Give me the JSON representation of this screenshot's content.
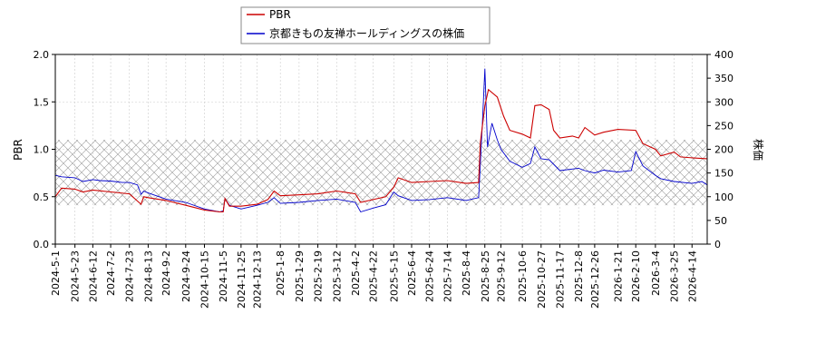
{
  "chart_data": {
    "type": "line",
    "legend": {
      "placement": "top-center",
      "entries": [
        "PBR",
        "京都きもの友禅ホールディングスの株価"
      ]
    },
    "left_axis": {
      "label": "PBR",
      "range": [
        0,
        2.0
      ],
      "ticks": [
        "0.0",
        "0.5",
        "1.0",
        "1.5",
        "2.0"
      ]
    },
    "right_axis": {
      "label": "株価",
      "range": [
        0,
        400
      ],
      "ticks": [
        "0",
        "50",
        "100",
        "150",
        "200",
        "250",
        "300",
        "350",
        "400"
      ]
    },
    "x_axis": {
      "range": [
        "2024-05-01",
        "2026-05-01"
      ],
      "ticks": [
        "2024-5-1",
        "2024-5-23",
        "2024-6-12",
        "2024-7-2",
        "2024-7-23",
        "2024-8-13",
        "2024-9-2",
        "2024-9-24",
        "2024-10-15",
        "2024-11-5",
        "2024-11-25",
        "2024-12-13",
        "2025-1-8",
        "2025-1-29",
        "2025-2-19",
        "2025-3-12",
        "2025-4-2",
        "2025-4-22",
        "2025-5-15",
        "2025-6-4",
        "2025-6-24",
        "2025-7-14",
        "2025-8-4",
        "2025-8-25",
        "2025-9-12",
        "2025-10-6",
        "2025-10-27",
        "2025-11-17",
        "2025-12-8",
        "2025-12-26",
        "2026-1-21",
        "2026-2-10",
        "2026-3-4",
        "2026-3-25",
        "2026-4-14"
      ]
    },
    "band": {
      "axis": "right",
      "range": [
        82,
        220
      ],
      "pattern": "crosshatch"
    },
    "grid": true,
    "colors": {
      "pbr": "#cc0000",
      "price": "#0000cc",
      "band": "#999999"
    },
    "series": [
      {
        "name": "PBR",
        "axis": "left",
        "points": [
          [
            "2024-05-01",
            0.5
          ],
          [
            "2024-05-08",
            0.59
          ],
          [
            "2024-05-23",
            0.58
          ],
          [
            "2024-06-01",
            0.55
          ],
          [
            "2024-06-12",
            0.57
          ],
          [
            "2024-07-02",
            0.55
          ],
          [
            "2024-07-23",
            0.53
          ],
          [
            "2024-08-05",
            0.42
          ],
          [
            "2024-08-08",
            0.5
          ],
          [
            "2024-08-13",
            0.49
          ],
          [
            "2024-09-02",
            0.46
          ],
          [
            "2024-09-24",
            0.41
          ],
          [
            "2024-10-15",
            0.36
          ],
          [
            "2024-11-01",
            0.34
          ],
          [
            "2024-11-05",
            0.34
          ],
          [
            "2024-11-07",
            0.48
          ],
          [
            "2024-11-12",
            0.4
          ],
          [
            "2024-11-25",
            0.4
          ],
          [
            "2024-12-13",
            0.42
          ],
          [
            "2024-12-25",
            0.47
          ],
          [
            "2025-01-01",
            0.56
          ],
          [
            "2025-01-08",
            0.51
          ],
          [
            "2025-01-29",
            0.52
          ],
          [
            "2025-02-19",
            0.53
          ],
          [
            "2025-03-12",
            0.56
          ],
          [
            "2025-04-02",
            0.53
          ],
          [
            "2025-04-08",
            0.44
          ],
          [
            "2025-04-22",
            0.47
          ],
          [
            "2025-05-06",
            0.5
          ],
          [
            "2025-05-15",
            0.6
          ],
          [
            "2025-05-20",
            0.7
          ],
          [
            "2025-06-04",
            0.65
          ],
          [
            "2025-06-24",
            0.66
          ],
          [
            "2025-07-14",
            0.67
          ],
          [
            "2025-08-04",
            0.64
          ],
          [
            "2025-08-18",
            0.65
          ],
          [
            "2025-08-20",
            1.07
          ],
          [
            "2025-08-25",
            1.46
          ],
          [
            "2025-08-29",
            1.63
          ],
          [
            "2025-09-08",
            1.55
          ],
          [
            "2025-09-15",
            1.35
          ],
          [
            "2025-09-22",
            1.2
          ],
          [
            "2025-10-06",
            1.16
          ],
          [
            "2025-10-15",
            1.12
          ],
          [
            "2025-10-20",
            1.46
          ],
          [
            "2025-10-27",
            1.47
          ],
          [
            "2025-11-05",
            1.42
          ],
          [
            "2025-11-10",
            1.2
          ],
          [
            "2025-11-17",
            1.12
          ],
          [
            "2025-12-01",
            1.14
          ],
          [
            "2025-12-08",
            1.12
          ],
          [
            "2025-12-15",
            1.23
          ],
          [
            "2025-12-26",
            1.15
          ],
          [
            "2026-01-05",
            1.18
          ],
          [
            "2026-01-21",
            1.21
          ],
          [
            "2026-02-10",
            1.2
          ],
          [
            "2026-02-18",
            1.06
          ],
          [
            "2026-03-04",
            1.0
          ],
          [
            "2026-03-10",
            0.93
          ],
          [
            "2026-03-25",
            0.97
          ],
          [
            "2026-04-01",
            0.92
          ],
          [
            "2026-04-14",
            0.91
          ],
          [
            "2026-05-01",
            0.9
          ]
        ]
      },
      {
        "name": "京都きもの友禅ホールディングスの株価",
        "axis": "right",
        "points": [
          [
            "2024-05-01",
            145
          ],
          [
            "2024-05-08",
            142
          ],
          [
            "2024-05-23",
            140
          ],
          [
            "2024-06-01",
            132
          ],
          [
            "2024-06-12",
            136
          ],
          [
            "2024-06-20",
            134
          ],
          [
            "2024-07-02",
            133
          ],
          [
            "2024-07-15",
            130
          ],
          [
            "2024-07-23",
            130
          ],
          [
            "2024-08-01",
            125
          ],
          [
            "2024-08-05",
            105
          ],
          [
            "2024-08-08",
            112
          ],
          [
            "2024-08-13",
            108
          ],
          [
            "2024-09-02",
            95
          ],
          [
            "2024-09-24",
            88
          ],
          [
            "2024-10-15",
            74
          ],
          [
            "2024-11-01",
            68
          ],
          [
            "2024-11-05",
            70
          ],
          [
            "2024-11-07",
            96
          ],
          [
            "2024-11-12",
            82
          ],
          [
            "2024-11-25",
            74
          ],
          [
            "2024-12-13",
            82
          ],
          [
            "2024-12-25",
            88
          ],
          [
            "2025-01-01",
            98
          ],
          [
            "2025-01-08",
            86
          ],
          [
            "2025-01-29",
            88
          ],
          [
            "2025-02-19",
            92
          ],
          [
            "2025-03-12",
            95
          ],
          [
            "2025-04-02",
            88
          ],
          [
            "2025-04-08",
            68
          ],
          [
            "2025-04-22",
            76
          ],
          [
            "2025-05-06",
            83
          ],
          [
            "2025-05-15",
            110
          ],
          [
            "2025-05-20",
            102
          ],
          [
            "2025-06-04",
            92
          ],
          [
            "2025-06-24",
            94
          ],
          [
            "2025-07-14",
            98
          ],
          [
            "2025-08-04",
            92
          ],
          [
            "2025-08-18",
            98
          ],
          [
            "2025-08-20",
            170
          ],
          [
            "2025-08-22",
            245
          ],
          [
            "2025-08-25",
            370
          ],
          [
            "2025-08-28",
            205
          ],
          [
            "2025-09-02",
            255
          ],
          [
            "2025-09-08",
            220
          ],
          [
            "2025-09-12",
            200
          ],
          [
            "2025-09-22",
            175
          ],
          [
            "2025-10-06",
            162
          ],
          [
            "2025-10-15",
            170
          ],
          [
            "2025-10-20",
            205
          ],
          [
            "2025-10-27",
            180
          ],
          [
            "2025-11-05",
            178
          ],
          [
            "2025-11-17",
            155
          ],
          [
            "2025-12-08",
            160
          ],
          [
            "2025-12-15",
            155
          ],
          [
            "2025-12-26",
            150
          ],
          [
            "2026-01-05",
            156
          ],
          [
            "2026-01-21",
            152
          ],
          [
            "2026-02-05",
            155
          ],
          [
            "2026-02-10",
            195
          ],
          [
            "2026-02-18",
            165
          ],
          [
            "2026-03-04",
            145
          ],
          [
            "2026-03-10",
            138
          ],
          [
            "2026-03-25",
            132
          ],
          [
            "2026-04-14",
            128
          ],
          [
            "2026-04-25",
            132
          ],
          [
            "2026-05-01",
            125
          ]
        ]
      }
    ]
  }
}
